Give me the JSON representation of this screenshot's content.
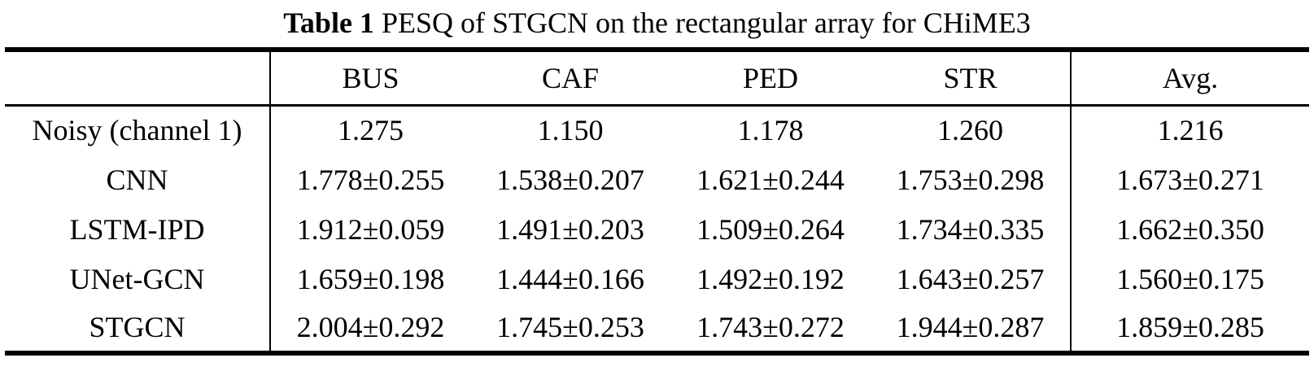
{
  "caption": {
    "label": "Table 1",
    "text": " PESQ of STGCN on the rectangular array for CHiME3"
  },
  "table": {
    "columns": [
      "",
      "BUS",
      "CAF",
      "PED",
      "STR",
      "Avg."
    ],
    "rows": [
      {
        "method": "Noisy (channel 1)",
        "cells": [
          "1.275",
          "1.150",
          "1.178",
          "1.260",
          "1.216"
        ],
        "bold": false
      },
      {
        "method": "CNN",
        "cells": [
          "1.778±0.255",
          "1.538±0.207",
          "1.621±0.244",
          "1.753±0.298",
          "1.673±0.271"
        ],
        "bold": false
      },
      {
        "method": "LSTM-IPD",
        "cells": [
          "1.912±0.059",
          "1.491±0.203",
          "1.509±0.264",
          "1.734±0.335",
          "1.662±0.350"
        ],
        "bold": false
      },
      {
        "method": "UNet-GCN",
        "cells": [
          "1.659±0.198",
          "1.444±0.166",
          "1.492±0.192",
          "1.643±0.257",
          "1.560±0.175"
        ],
        "bold": false
      },
      {
        "method": "STGCN",
        "cells": [
          "2.004±0.292",
          "1.745±0.253",
          "1.743±0.272",
          "1.944±0.287",
          "1.859±0.285"
        ],
        "bold": true
      }
    ]
  }
}
